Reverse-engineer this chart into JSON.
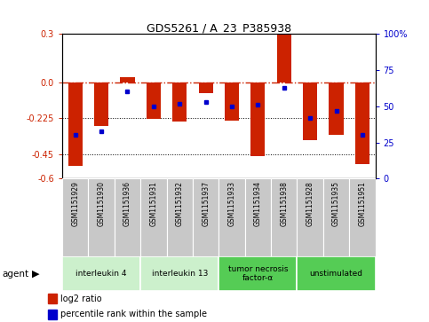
{
  "title": "GDS5261 / A_23_P385938",
  "samples": [
    "GSM1151929",
    "GSM1151930",
    "GSM1151936",
    "GSM1151931",
    "GSM1151932",
    "GSM1151937",
    "GSM1151933",
    "GSM1151934",
    "GSM1151938",
    "GSM1151928",
    "GSM1151935",
    "GSM1151951"
  ],
  "log2_ratio": [
    -0.52,
    -0.275,
    0.03,
    -0.23,
    -0.245,
    -0.07,
    -0.24,
    -0.46,
    0.295,
    -0.36,
    -0.33,
    -0.51
  ],
  "percentile": [
    30,
    33,
    60,
    50,
    52,
    53,
    50,
    51,
    63,
    42,
    47,
    30
  ],
  "ylim": [
    -0.6,
    0.3
  ],
  "yticks_left": [
    -0.6,
    -0.45,
    -0.225,
    0.0,
    0.3
  ],
  "yticks_right": [
    0,
    25,
    50,
    75,
    100
  ],
  "hline_red": 0.0,
  "hline_black1": -0.225,
  "hline_black2": -0.45,
  "bar_color": "#cc2200",
  "dot_color": "#0000cc",
  "groups": [
    {
      "label": "interleukin 4",
      "start": 0,
      "end": 3,
      "color": "#ccf0cc"
    },
    {
      "label": "interleukin 13",
      "start": 3,
      "end": 6,
      "color": "#ccf0cc"
    },
    {
      "label": "tumor necrosis\nfactor-α",
      "start": 6,
      "end": 9,
      "color": "#55cc55"
    },
    {
      "label": "unstimulated",
      "start": 9,
      "end": 12,
      "color": "#55cc55"
    }
  ],
  "agent_label": "agent",
  "legend_ratio_label": "log2 ratio",
  "legend_pct_label": "percentile rank within the sample",
  "bg_color": "#ffffff",
  "plot_bg": "#ffffff",
  "right_ytick_color": "#0000cc",
  "left_ytick_color": "#cc2200",
  "bar_width": 0.55,
  "sample_box_color": "#c8c8c8"
}
